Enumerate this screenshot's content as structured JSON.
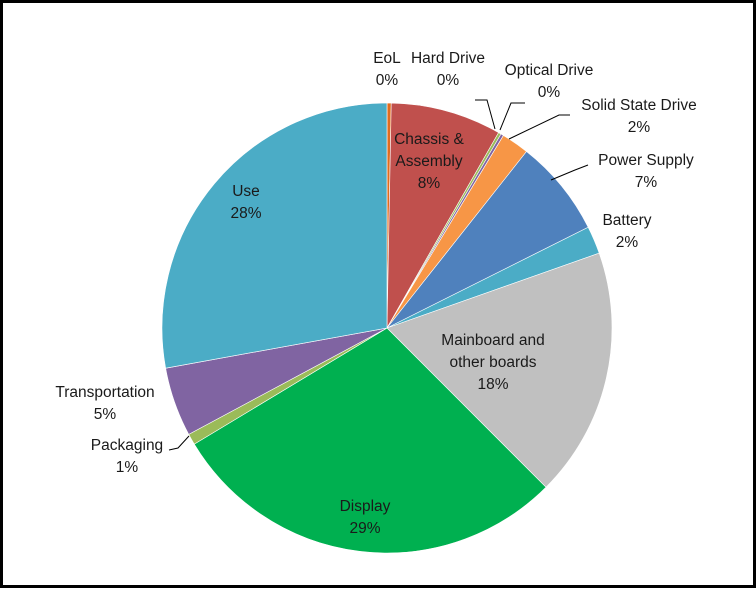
{
  "chart_data": {
    "type": "pie",
    "title": "",
    "unit": "%",
    "slices": [
      {
        "label": "EoL",
        "value": 0.3,
        "display": "0%",
        "color": "#e06c1f"
      },
      {
        "label": "Chassis & Assembly",
        "value": 8,
        "display": "8%",
        "color": "#c0504d"
      },
      {
        "label": "Hard Drive",
        "value": 0.2,
        "display": "0%",
        "color": "#9bbb59"
      },
      {
        "label": "Optical Drive",
        "value": 0.2,
        "display": "0%",
        "color": "#8064a2"
      },
      {
        "label": "Solid State Drive",
        "value": 2,
        "display": "2%",
        "color": "#f79646"
      },
      {
        "label": "Power Supply",
        "value": 7,
        "display": "7%",
        "color": "#4f81bd"
      },
      {
        "label": "Battery",
        "value": 2,
        "display": "2%",
        "color": "#4bacc6"
      },
      {
        "label": "Mainboard and other boards",
        "value": 18,
        "display": "18%",
        "color": "#c0c0c0"
      },
      {
        "label": "Display",
        "value": 29,
        "display": "29%",
        "color": "#00b050"
      },
      {
        "label": "Packaging",
        "value": 0.8,
        "display": "1%",
        "color": "#9bbb59"
      },
      {
        "label": "Transportation",
        "value": 5,
        "display": "5%",
        "color": "#8064a2"
      },
      {
        "label": "Use",
        "value": 28,
        "display": "28%",
        "color": "#4bacc6"
      }
    ],
    "legend": "none",
    "data_labels": "category and percentage"
  }
}
